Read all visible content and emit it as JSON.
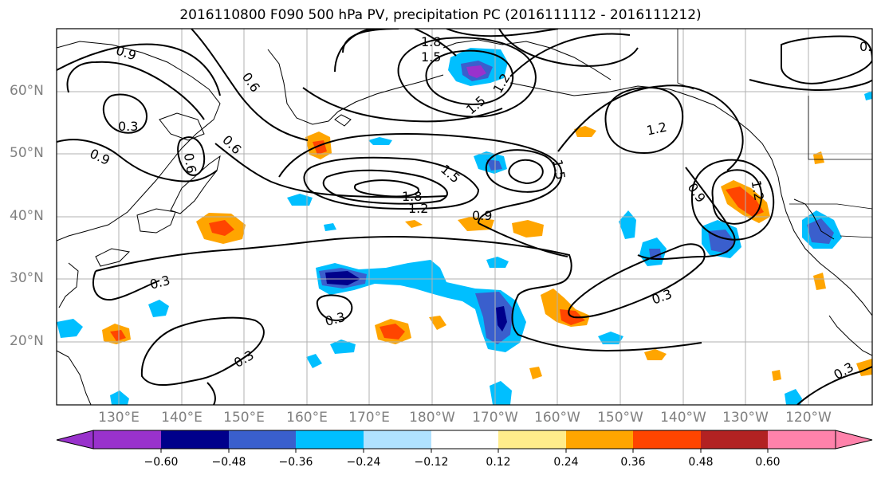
{
  "title": "2016110800 F090 500 hPa PV, precipitation PC (2016111112 - 2016111212)",
  "lat_labels": [
    "60°N",
    "50°N",
    "40°N",
    "30°N",
    "20°N"
  ],
  "lon_labels": [
    "130°E",
    "140°E",
    "150°E",
    "160°E",
    "170°E",
    "180°W",
    "170°W",
    "160°W",
    "150°W",
    "140°W",
    "130°W",
    "120°W"
  ],
  "contour_labels": [
    "0.9",
    "0.6",
    "1.8",
    "1.5",
    "0.6",
    "0.3",
    "0.6",
    "0.9",
    "0.6",
    "1.2",
    "1.5",
    "1.8",
    "1.5",
    "1.2",
    "0.9",
    "1.2",
    "0.9",
    "0.3",
    "0.3",
    "0.3",
    "0.3",
    "0.3",
    "1.5",
    "1.2"
  ],
  "colorbar": {
    "colors": [
      "#9932cc",
      "#00008b",
      "#3a5fcd",
      "#00bfff",
      "#b0e2ff",
      "#ffffff",
      "#ffec8b",
      "#ffa500",
      "#ff4500",
      "#b22222",
      "#ff82ab"
    ],
    "tick_labels": [
      "−0.60",
      "−0.48",
      "−0.36",
      "−0.24",
      "−0.12",
      "0.12",
      "0.24",
      "0.36",
      "0.48",
      "0.60"
    ]
  },
  "colors": {
    "grid": "#b0b0b0",
    "tick_text": "#808080",
    "contour": "#000000"
  }
}
